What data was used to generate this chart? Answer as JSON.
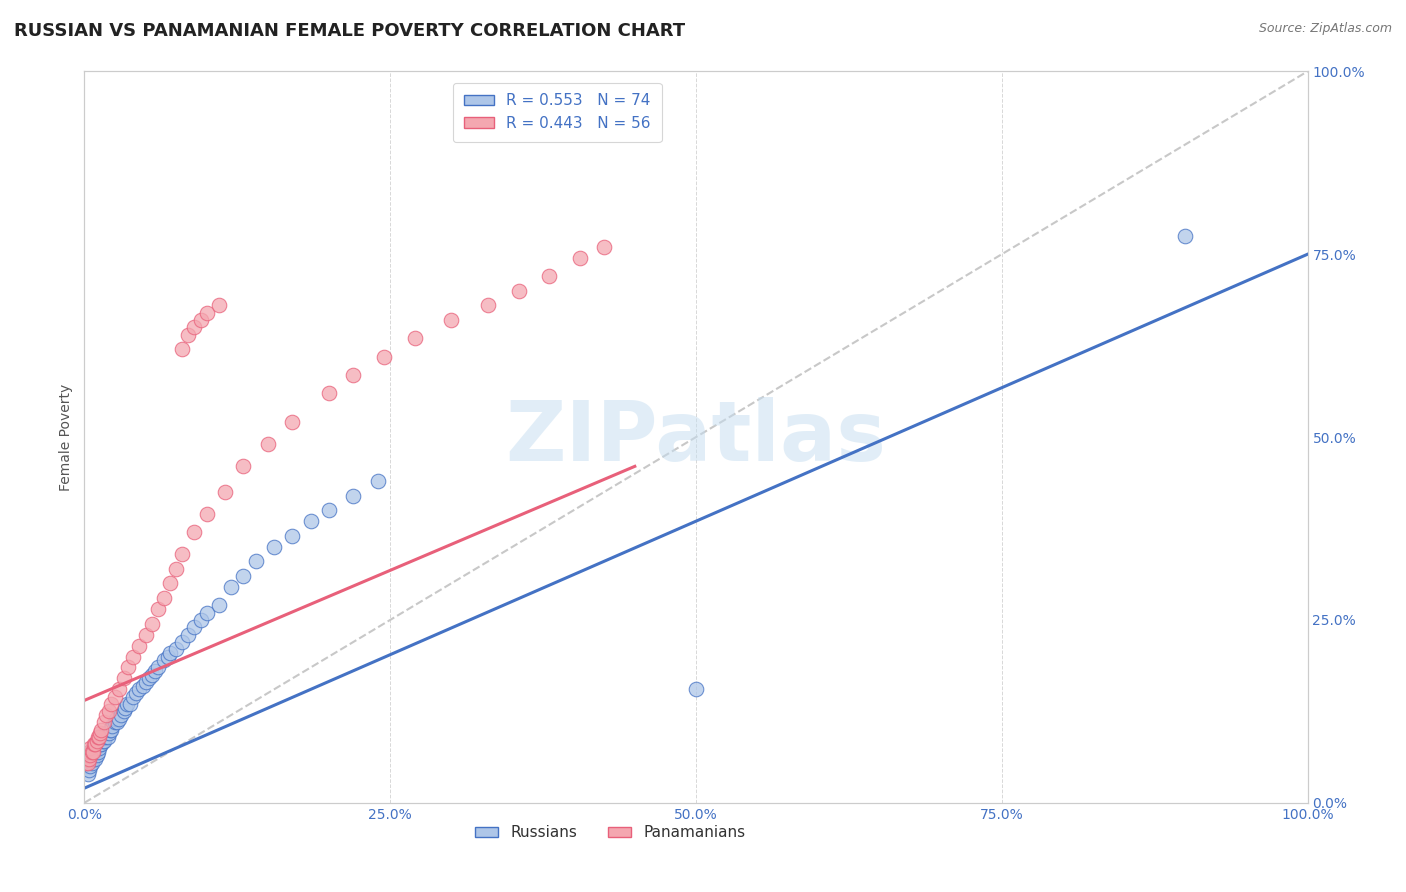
{
  "title": "RUSSIAN VS PANAMANIAN FEMALE POVERTY CORRELATION CHART",
  "source": "Source: ZipAtlas.com",
  "ylabel": "Female Poverty",
  "ytick_labels": [
    "0.0%",
    "25.0%",
    "50.0%",
    "75.0%",
    "100.0%"
  ],
  "ytick_values": [
    0.0,
    0.25,
    0.5,
    0.75,
    1.0
  ],
  "xtick_labels": [
    "0.0%",
    "25.0%",
    "50.0%",
    "75.0%",
    "100.0%"
  ],
  "xtick_values": [
    0.0,
    0.25,
    0.5,
    0.75,
    1.0
  ],
  "legend_r1": "R = 0.553",
  "legend_n1": "N = 74",
  "legend_r2": "R = 0.443",
  "legend_n2": "N = 56",
  "legend_label1": "Russians",
  "legend_label2": "Panamanians",
  "russian_color": "#aec6e8",
  "panamanian_color": "#f4a7b0",
  "russian_line_color": "#4472c4",
  "panamanian_line_color": "#e8607a",
  "diagonal_color": "#c8c8c8",
  "watermark_text": "ZIPatlas",
  "title_fontsize": 13,
  "axis_label_fontsize": 10,
  "tick_fontsize": 10,
  "xlim": [
    0.0,
    1.0
  ],
  "ylim": [
    0.0,
    1.0
  ],
  "russian_line_x": [
    0.0,
    1.0
  ],
  "russian_line_y": [
    0.02,
    0.75
  ],
  "panamanian_line_x": [
    0.0,
    0.45
  ],
  "panamanian_line_y": [
    0.14,
    0.46
  ],
  "russians_x": [
    0.001,
    0.002,
    0.002,
    0.003,
    0.003,
    0.003,
    0.004,
    0.004,
    0.005,
    0.005,
    0.005,
    0.006,
    0.006,
    0.007,
    0.007,
    0.008,
    0.008,
    0.009,
    0.009,
    0.01,
    0.01,
    0.011,
    0.012,
    0.013,
    0.014,
    0.015,
    0.015,
    0.016,
    0.017,
    0.018,
    0.019,
    0.02,
    0.021,
    0.022,
    0.023,
    0.025,
    0.026,
    0.027,
    0.028,
    0.03,
    0.032,
    0.033,
    0.035,
    0.037,
    0.04,
    0.042,
    0.045,
    0.048,
    0.05,
    0.053,
    0.055,
    0.058,
    0.06,
    0.065,
    0.068,
    0.07,
    0.075,
    0.08,
    0.085,
    0.09,
    0.095,
    0.1,
    0.11,
    0.12,
    0.13,
    0.14,
    0.155,
    0.17,
    0.185,
    0.2,
    0.22,
    0.24,
    0.5,
    0.9
  ],
  "russians_y": [
    0.05,
    0.055,
    0.06,
    0.04,
    0.055,
    0.065,
    0.045,
    0.06,
    0.05,
    0.06,
    0.07,
    0.055,
    0.065,
    0.06,
    0.07,
    0.065,
    0.075,
    0.06,
    0.07,
    0.065,
    0.075,
    0.07,
    0.075,
    0.08,
    0.08,
    0.085,
    0.09,
    0.085,
    0.09,
    0.095,
    0.09,
    0.095,
    0.1,
    0.1,
    0.105,
    0.11,
    0.115,
    0.11,
    0.115,
    0.12,
    0.125,
    0.13,
    0.135,
    0.135,
    0.145,
    0.15,
    0.155,
    0.16,
    0.165,
    0.17,
    0.175,
    0.18,
    0.185,
    0.195,
    0.2,
    0.205,
    0.21,
    0.22,
    0.23,
    0.24,
    0.25,
    0.26,
    0.27,
    0.295,
    0.31,
    0.33,
    0.35,
    0.365,
    0.385,
    0.4,
    0.42,
    0.44,
    0.155,
    0.775
  ],
  "panamanians_x": [
    0.001,
    0.002,
    0.003,
    0.003,
    0.004,
    0.004,
    0.005,
    0.005,
    0.006,
    0.007,
    0.008,
    0.009,
    0.01,
    0.011,
    0.012,
    0.013,
    0.014,
    0.016,
    0.018,
    0.02,
    0.022,
    0.025,
    0.028,
    0.032,
    0.036,
    0.04,
    0.045,
    0.05,
    0.055,
    0.06,
    0.065,
    0.07,
    0.075,
    0.08,
    0.09,
    0.1,
    0.115,
    0.13,
    0.15,
    0.17,
    0.2,
    0.22,
    0.245,
    0.27,
    0.3,
    0.33,
    0.355,
    0.38,
    0.405,
    0.425,
    0.08,
    0.085,
    0.09,
    0.095,
    0.1,
    0.11
  ],
  "panamanians_y": [
    0.055,
    0.06,
    0.055,
    0.065,
    0.06,
    0.07,
    0.065,
    0.075,
    0.07,
    0.07,
    0.08,
    0.08,
    0.085,
    0.09,
    0.09,
    0.095,
    0.1,
    0.11,
    0.12,
    0.125,
    0.135,
    0.145,
    0.155,
    0.17,
    0.185,
    0.2,
    0.215,
    0.23,
    0.245,
    0.265,
    0.28,
    0.3,
    0.32,
    0.34,
    0.37,
    0.395,
    0.425,
    0.46,
    0.49,
    0.52,
    0.56,
    0.585,
    0.61,
    0.635,
    0.66,
    0.68,
    0.7,
    0.72,
    0.745,
    0.76,
    0.62,
    0.64,
    0.65,
    0.66,
    0.67,
    0.68
  ]
}
